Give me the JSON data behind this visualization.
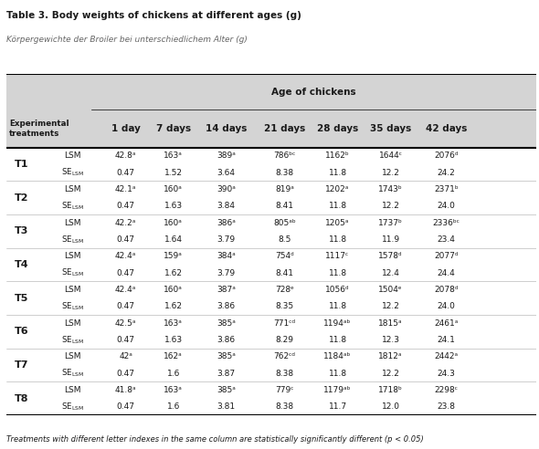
{
  "title": "Table 3. Body weights of chickens at different ages (g)",
  "subtitle": "Körpergewichte der Broiler bei unterschiedlichem Alter (g)",
  "header_group": "Age of chickens",
  "footnote": "Treatments with different letter indexes in the same column are statistically significantly different (p < 0.05)",
  "rows": [
    {
      "treat": "T1",
      "lsm": [
        "42.8ᵃ",
        "163ᵃ",
        "389ᵃ",
        "786ᵇᶜ",
        "1162ᵇ",
        "1644ᶜ",
        "2076ᵈ"
      ],
      "se": [
        "0.47",
        "1.52",
        "3.64",
        "8.38",
        "11.8",
        "12.2",
        "24.2"
      ]
    },
    {
      "treat": "T2",
      "lsm": [
        "42.1ᵃ",
        "160ᵃ",
        "390ᵃ",
        "819ᵃ",
        "1202ᵃ",
        "1743ᵇ",
        "2371ᵇ"
      ],
      "se": [
        "0.47",
        "1.63",
        "3.84",
        "8.41",
        "11.8",
        "12.2",
        "24.0"
      ]
    },
    {
      "treat": "T3",
      "lsm": [
        "42.2ᵃ",
        "160ᵃ",
        "386ᵃ",
        "805ᵃᵇ",
        "1205ᵃ",
        "1737ᵇ",
        "2336ᵇᶜ"
      ],
      "se": [
        "0.47",
        "1.64",
        "3.79",
        "8.5",
        "11.8",
        "11.9",
        "23.4"
      ]
    },
    {
      "treat": "T4",
      "lsm": [
        "42.4ᵃ",
        "159ᵃ",
        "384ᵃ",
        "754ᵈ",
        "1117ᶜ",
        "1578ᵈ",
        "2077ᵈ"
      ],
      "se": [
        "0.47",
        "1.62",
        "3.79",
        "8.41",
        "11.8",
        "12.4",
        "24.4"
      ]
    },
    {
      "treat": "T5",
      "lsm": [
        "42.4ᵃ",
        "160ᵃ",
        "387ᵃ",
        "728ᵉ",
        "1056ᵈ",
        "1504ᵉ",
        "2078ᵈ"
      ],
      "se": [
        "0.47",
        "1.62",
        "3.86",
        "8.35",
        "11.8",
        "12.2",
        "24.0"
      ]
    },
    {
      "treat": "T6",
      "lsm": [
        "42.5ᵃ",
        "163ᵃ",
        "385ᵃ",
        "771ᶜᵈ",
        "1194ᵃᵇ",
        "1815ᵃ",
        "2461ᵃ"
      ],
      "se": [
        "0.47",
        "1.63",
        "3.86",
        "8.29",
        "11.8",
        "12.3",
        "24.1"
      ]
    },
    {
      "treat": "T7",
      "lsm": [
        "42ᵃ",
        "162ᵃ",
        "385ᵃ",
        "762ᶜᵈ",
        "1184ᵃᵇ",
        "1812ᵃ",
        "2442ᵃ"
      ],
      "se": [
        "0.47",
        "1.6",
        "3.87",
        "8.38",
        "11.8",
        "12.2",
        "24.3"
      ]
    },
    {
      "treat": "T8",
      "lsm": [
        "41.8ᵃ",
        "163ᵃ",
        "385ᵃ",
        "779ᶜ",
        "1179ᵃᵇ",
        "1718ᵇ",
        "2298ᶜ"
      ],
      "se": [
        "0.47",
        "1.6",
        "3.81",
        "8.38",
        "11.7",
        "12.0",
        "23.8"
      ]
    }
  ],
  "bg_header": "#d4d4d4",
  "bg_white": "#ffffff",
  "text_dark": "#1a1a1a",
  "text_subtitle": "#666666",
  "line_color_thick": "#000000",
  "line_color_thin": "#aaaaaa",
  "title_fontsize": 7.5,
  "subtitle_fontsize": 6.5,
  "header_fontsize": 7.5,
  "data_fontsize": 6.5,
  "footnote_fontsize": 6.0,
  "col_names": [
    "1 day",
    "7 days",
    "14 days",
    "21 days",
    "28 days",
    "35 days",
    "42 days"
  ]
}
